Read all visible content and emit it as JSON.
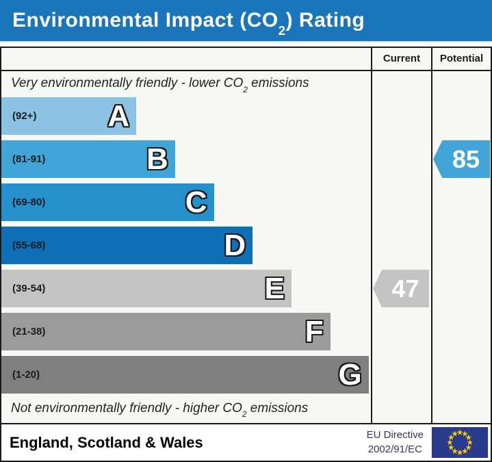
{
  "title": {
    "prefix": "Environmental Impact (CO",
    "sub": "2",
    "suffix": ") Rating"
  },
  "columns": {
    "current": "Current",
    "potential": "Potential"
  },
  "captions": {
    "top": {
      "prefix": "Very environmentally friendly - lower CO",
      "sub": "2",
      "suffix": " emissions"
    },
    "bottom": {
      "prefix": "Not environmentally friendly - higher CO",
      "sub": "2",
      "suffix": " emissions"
    }
  },
  "chart_data": {
    "type": "bar",
    "title": "Environmental Impact (CO2) Rating",
    "bands": [
      {
        "letter": "A",
        "range": "(92+)",
        "color": "#8cc3e4",
        "width_pct": 36.5
      },
      {
        "letter": "B",
        "range": "(81-91)",
        "color": "#41a5d8",
        "width_pct": 47.0
      },
      {
        "letter": "C",
        "range": "(69-80)",
        "color": "#2491cc",
        "width_pct": 57.5
      },
      {
        "letter": "D",
        "range": "(55-68)",
        "color": "#0d6fb5",
        "width_pct": 68.0
      },
      {
        "letter": "E",
        "range": "(39-54)",
        "color": "#c4c4c4",
        "width_pct": 78.5
      },
      {
        "letter": "F",
        "range": "(21-38)",
        "color": "#9b9b9b",
        "width_pct": 89.0
      },
      {
        "letter": "G",
        "range": "(1-20)",
        "color": "#7f7f7f",
        "width_pct": 99.4
      }
    ],
    "markers": {
      "current": {
        "value": 47,
        "band": "E",
        "band_index": 4,
        "color": "#c4c4c4"
      },
      "potential": {
        "value": 85,
        "band": "B",
        "band_index": 1,
        "color": "#41a5d8"
      }
    }
  },
  "footer": {
    "region": "England, Scotland & Wales",
    "directive_line1": "EU Directive",
    "directive_line2": "2002/91/EC",
    "eu_flag": {
      "background": "#2a3b8e",
      "star_color": "#ffcc00",
      "stars": 12
    }
  },
  "colors": {
    "title_bar": "#1b75ba",
    "chart_bg": "#f8f8f4",
    "border": "#1a1a1a"
  }
}
